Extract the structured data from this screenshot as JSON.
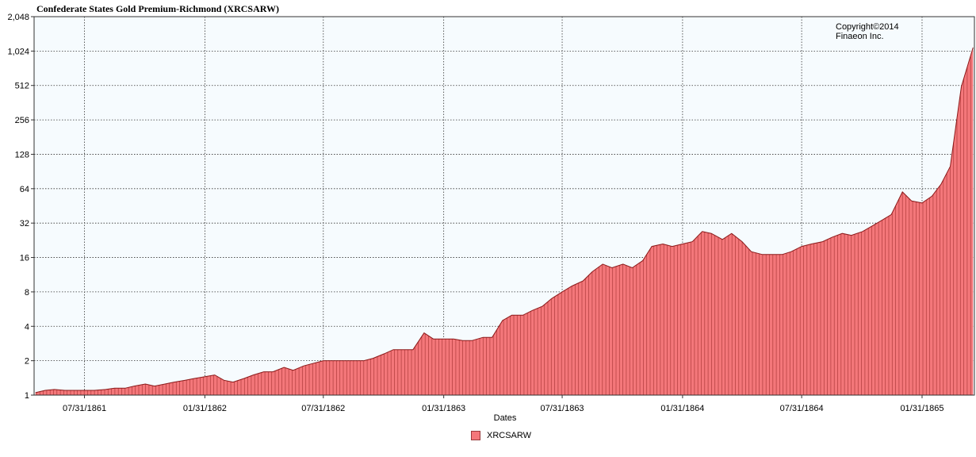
{
  "chart_data": {
    "type": "area",
    "title": "Confederate States Gold Premium-Richmond (XRCSARW)",
    "xlabel": "Dates",
    "ylabel": "",
    "y_scale": "log2",
    "ylim": [
      1,
      2048
    ],
    "y_ticks": [
      "1",
      "2",
      "4",
      "8",
      "16",
      "32",
      "64",
      "128",
      "256",
      "512",
      "1,024",
      "2,048"
    ],
    "x_ticks": [
      "07/31/1861",
      "01/31/1862",
      "07/31/1862",
      "01/31/1863",
      "07/31/1863",
      "01/31/1864",
      "07/31/1864",
      "01/31/1865"
    ],
    "xlim": [
      "1861-05-15",
      "1865-04-21"
    ],
    "grid": true,
    "legend_position": "bottom",
    "annotation": [
      "Copyright©2014",
      "Finaeon Inc."
    ],
    "series": [
      {
        "name": "XRCSARW",
        "color": "#f4777a",
        "line_color": "#8b1a1a",
        "points": [
          [
            "1861-05-17",
            1.05
          ],
          [
            "1861-06-01",
            1.1
          ],
          [
            "1861-06-15",
            1.12
          ],
          [
            "1861-07-01",
            1.1
          ],
          [
            "1861-07-15",
            1.1
          ],
          [
            "1861-08-01",
            1.1
          ],
          [
            "1861-08-15",
            1.1
          ],
          [
            "1861-09-01",
            1.12
          ],
          [
            "1861-09-15",
            1.15
          ],
          [
            "1861-10-01",
            1.15
          ],
          [
            "1861-10-15",
            1.2
          ],
          [
            "1861-11-01",
            1.25
          ],
          [
            "1861-11-15",
            1.2
          ],
          [
            "1861-12-01",
            1.25
          ],
          [
            "1861-12-15",
            1.3
          ],
          [
            "1862-01-01",
            1.35
          ],
          [
            "1862-01-15",
            1.4
          ],
          [
            "1862-01-31",
            1.45
          ],
          [
            "1862-02-15",
            1.5
          ],
          [
            "1862-03-01",
            1.35
          ],
          [
            "1862-03-15",
            1.3
          ],
          [
            "1862-04-01",
            1.4
          ],
          [
            "1862-04-15",
            1.5
          ],
          [
            "1862-05-01",
            1.6
          ],
          [
            "1862-05-15",
            1.6
          ],
          [
            "1862-06-01",
            1.75
          ],
          [
            "1862-06-15",
            1.65
          ],
          [
            "1862-07-01",
            1.8
          ],
          [
            "1862-07-31",
            2.0
          ],
          [
            "1862-08-15",
            2.0
          ],
          [
            "1862-09-01",
            2.0
          ],
          [
            "1862-09-15",
            2.0
          ],
          [
            "1862-10-01",
            2.0
          ],
          [
            "1862-10-15",
            2.1
          ],
          [
            "1862-11-01",
            2.3
          ],
          [
            "1862-11-15",
            2.5
          ],
          [
            "1862-12-01",
            2.5
          ],
          [
            "1862-12-15",
            2.5
          ],
          [
            "1863-01-01",
            3.5
          ],
          [
            "1863-01-15",
            3.1
          ],
          [
            "1863-01-31",
            3.1
          ],
          [
            "1863-02-15",
            3.1
          ],
          [
            "1863-03-01",
            3.0
          ],
          [
            "1863-03-15",
            3.0
          ],
          [
            "1863-04-01",
            3.2
          ],
          [
            "1863-04-15",
            3.2
          ],
          [
            "1863-05-01",
            4.5
          ],
          [
            "1863-05-15",
            5.0
          ],
          [
            "1863-06-01",
            5.0
          ],
          [
            "1863-06-15",
            5.5
          ],
          [
            "1863-07-01",
            6.0
          ],
          [
            "1863-07-15",
            7.0
          ],
          [
            "1863-07-31",
            8.0
          ],
          [
            "1863-08-15",
            9.0
          ],
          [
            "1863-09-01",
            10.0
          ],
          [
            "1863-09-15",
            12.0
          ],
          [
            "1863-10-01",
            14.0
          ],
          [
            "1863-10-15",
            13.0
          ],
          [
            "1863-11-01",
            14.0
          ],
          [
            "1863-11-15",
            13.0
          ],
          [
            "1863-12-01",
            15.0
          ],
          [
            "1863-12-15",
            20.0
          ],
          [
            "1864-01-01",
            21.0
          ],
          [
            "1864-01-15",
            20.0
          ],
          [
            "1864-01-31",
            21.0
          ],
          [
            "1864-02-15",
            22.0
          ],
          [
            "1864-03-01",
            27.0
          ],
          [
            "1864-03-15",
            26.0
          ],
          [
            "1864-04-01",
            23.0
          ],
          [
            "1864-04-15",
            26.0
          ],
          [
            "1864-05-01",
            22.0
          ],
          [
            "1864-05-15",
            18.0
          ],
          [
            "1864-06-01",
            17.0
          ],
          [
            "1864-06-15",
            17.0
          ],
          [
            "1864-07-01",
            17.0
          ],
          [
            "1864-07-15",
            18.0
          ],
          [
            "1864-07-31",
            20.0
          ],
          [
            "1864-08-15",
            21.0
          ],
          [
            "1864-09-01",
            22.0
          ],
          [
            "1864-09-15",
            24.0
          ],
          [
            "1864-10-01",
            26.0
          ],
          [
            "1864-10-15",
            25.0
          ],
          [
            "1864-11-01",
            27.0
          ],
          [
            "1864-11-15",
            30.0
          ],
          [
            "1864-12-01",
            34.0
          ],
          [
            "1864-12-15",
            38.0
          ],
          [
            "1865-01-01",
            60.0
          ],
          [
            "1865-01-15",
            50.0
          ],
          [
            "1865-01-31",
            48.0
          ],
          [
            "1865-02-15",
            55.0
          ],
          [
            "1865-03-01",
            70.0
          ],
          [
            "1865-03-15",
            100.0
          ],
          [
            "1865-04-01",
            500.0
          ],
          [
            "1865-04-19",
            1100.0
          ]
        ]
      }
    ]
  }
}
